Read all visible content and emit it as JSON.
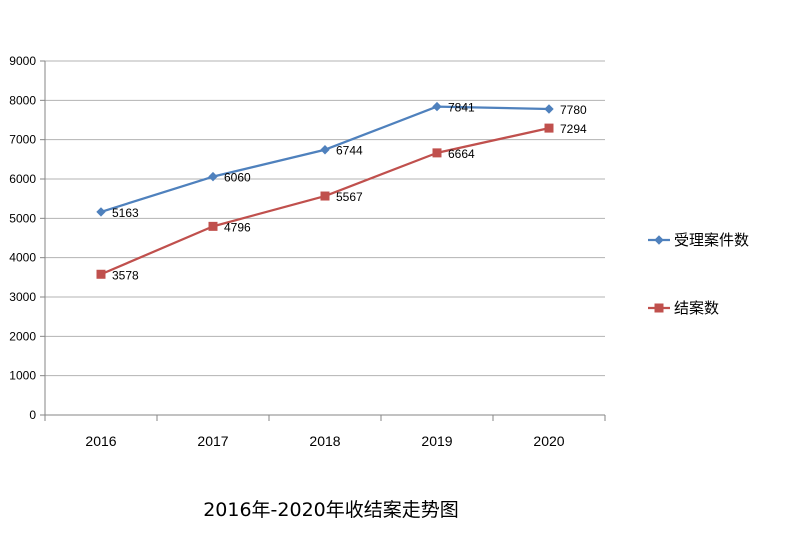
{
  "chart_data": {
    "type": "line",
    "title": "2016年-2020年收结案走势图",
    "categories": [
      "2016",
      "2017",
      "2018",
      "2019",
      "2020"
    ],
    "ylim": [
      0,
      9000
    ],
    "yticks": [
      0,
      1000,
      2000,
      3000,
      4000,
      5000,
      6000,
      7000,
      8000,
      9000
    ],
    "grid": true,
    "legend": "right",
    "series": [
      {
        "name": "受理案件数",
        "values": [
          5163,
          6060,
          6744,
          7841,
          7780
        ],
        "color": "#4f81bd",
        "marker": "diamond"
      },
      {
        "name": "结案数",
        "values": [
          3578,
          4796,
          5567,
          6664,
          7294
        ],
        "color": "#c0504d",
        "marker": "square"
      }
    ]
  }
}
